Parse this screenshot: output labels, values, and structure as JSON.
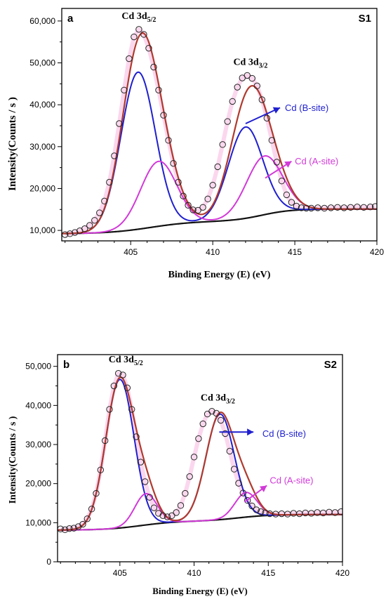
{
  "colors": {
    "data_points": "#222222",
    "fit_envelope": "#b03a2e",
    "b_site": "#1f1fd0",
    "a_site": "#d23ad8",
    "background": "#111111",
    "raw_band": "#f7b7e0"
  },
  "chart_data": [
    {
      "type": "scatter",
      "panel_letter": "a",
      "sample_label": "S1",
      "xlabel": "Binding Energy (E) (eV)",
      "ylabel": "Intensity(Counts / s )",
      "xlim": [
        400.8,
        420
      ],
      "ylim": [
        7500,
        63000
      ],
      "x_ticks": [
        405,
        410,
        415,
        420
      ],
      "y_ticks": [
        10000,
        20000,
        30000,
        40000,
        50000,
        60000
      ],
      "y_tick_labels": [
        "10,000",
        "20,000",
        "30,000",
        "40,000",
        "50,000",
        "60,000"
      ],
      "peak_labels": [
        {
          "base": "Cd 3d",
          "sub": "5/2",
          "x": 405.5,
          "y": 60500
        },
        {
          "base": "Cd 3d",
          "sub": "3/2",
          "x": 412.3,
          "y": 49500
        }
      ],
      "site_labels": [
        {
          "text": "Cd (B-site)",
          "color_key": "b_site",
          "x": 414.4,
          "y": 38500,
          "arrow_from": [
            412.0,
            35500
          ],
          "arrow_to": [
            414.1,
            39300
          ]
        },
        {
          "text": "Cd (A-site)",
          "color_key": "a_site",
          "x": 415.0,
          "y": 25800,
          "arrow_from": [
            413.2,
            22500
          ],
          "arrow_to": [
            414.8,
            26500
          ]
        }
      ],
      "background_params": {
        "start": 9200,
        "step1": 3000,
        "c1": 406.2,
        "w1": 1.3,
        "step2": 2900,
        "c2": 413.0,
        "w2": 0.9
      },
      "series": [
        {
          "name": "Cd (B-site)",
          "color_key": "b_site",
          "peaks": [
            {
              "center": 405.45,
              "height": 37500,
              "sigma": 1.05
            },
            {
              "center": 412.0,
              "height": 21800,
              "sigma": 1.05
            }
          ]
        },
        {
          "name": "Cd (A-site)",
          "color_key": "a_site",
          "peaks": [
            {
              "center": 406.7,
              "height": 15500,
              "sigma": 1.1
            },
            {
              "center": 413.15,
              "height": 14000,
              "sigma": 1.1
            }
          ]
        }
      ],
      "observed_points": [
        [
          401.0,
          9000
        ],
        [
          401.3,
          9200
        ],
        [
          401.6,
          9500
        ],
        [
          401.9,
          9900
        ],
        [
          402.2,
          10400
        ],
        [
          402.5,
          11200
        ],
        [
          402.8,
          12400
        ],
        [
          403.1,
          14200
        ],
        [
          403.4,
          17000
        ],
        [
          403.7,
          21500
        ],
        [
          404.0,
          27800
        ],
        [
          404.3,
          35500
        ],
        [
          404.6,
          43500
        ],
        [
          404.9,
          51000
        ],
        [
          405.2,
          56200
        ],
        [
          405.5,
          58000
        ],
        [
          405.8,
          56800
        ],
        [
          406.1,
          53500
        ],
        [
          406.4,
          49000
        ],
        [
          406.7,
          43500
        ],
        [
          407.0,
          37500
        ],
        [
          407.3,
          31500
        ],
        [
          407.6,
          26000
        ],
        [
          407.9,
          21500
        ],
        [
          408.2,
          18200
        ],
        [
          408.5,
          16000
        ],
        [
          408.8,
          14900
        ],
        [
          409.1,
          14800
        ],
        [
          409.4,
          15500
        ],
        [
          409.7,
          17500
        ],
        [
          410.0,
          20800
        ],
        [
          410.3,
          25200
        ],
        [
          410.6,
          30500
        ],
        [
          410.9,
          36000
        ],
        [
          411.2,
          40800
        ],
        [
          411.5,
          44200
        ],
        [
          411.8,
          46400
        ],
        [
          412.1,
          47000
        ],
        [
          412.4,
          46300
        ],
        [
          412.7,
          44500
        ],
        [
          413.0,
          41200
        ],
        [
          413.3,
          36800
        ],
        [
          413.6,
          31500
        ],
        [
          413.9,
          26300
        ],
        [
          414.2,
          21800
        ],
        [
          414.5,
          18500
        ],
        [
          414.8,
          16700
        ],
        [
          415.1,
          15800
        ],
        [
          415.4,
          15400
        ],
        [
          415.7,
          15300
        ],
        [
          416.0,
          15300
        ],
        [
          416.4,
          15400
        ],
        [
          416.8,
          15300
        ],
        [
          417.2,
          15400
        ],
        [
          417.6,
          15500
        ],
        [
          418.0,
          15400
        ],
        [
          418.4,
          15500
        ],
        [
          418.8,
          15600
        ],
        [
          419.2,
          15500
        ],
        [
          419.6,
          15600
        ],
        [
          419.9,
          15700
        ]
      ]
    },
    {
      "type": "scatter",
      "panel_letter": "b",
      "sample_label": "S2",
      "xlabel": "Binding Energy (E) (eV)",
      "ylabel": "Intensity(Counts / s )",
      "xlim": [
        400.8,
        420
      ],
      "ylim": [
        0,
        53000
      ],
      "x_ticks": [
        405,
        410,
        415,
        420
      ],
      "y_ticks": [
        0,
        10000,
        20000,
        30000,
        40000,
        50000
      ],
      "y_tick_labels": [
        "0",
        "10,000",
        "20,000",
        "30,000",
        "40,000",
        "50,000"
      ],
      "peak_labels": [
        {
          "base": "Cd 3d",
          "sub": "5/2",
          "x": 405.4,
          "y": 51000
        },
        {
          "base": "Cd 3d",
          "sub": "3/2",
          "x": 411.6,
          "y": 41200
        }
      ],
      "site_labels": [
        {
          "text": "Cd (B-site)",
          "color_key": "b_site",
          "x": 414.6,
          "y": 32000,
          "arrow_from": [
            411.7,
            33200
          ],
          "arrow_to": [
            414.0,
            33200
          ]
        },
        {
          "text": "Cd (A-site)",
          "color_key": "a_site",
          "x": 415.1,
          "y": 20000,
          "arrow_from": [
            413.4,
            15300
          ],
          "arrow_to": [
            414.9,
            19500
          ]
        }
      ],
      "background_params": {
        "start": 8100,
        "step1": 2300,
        "c1": 406.4,
        "w1": 1.2,
        "step2": 1700,
        "c2": 413.0,
        "w2": 1.1
      },
      "series": [
        {
          "name": "Cd (B-site)",
          "color_key": "b_site",
          "peaks": [
            {
              "center": 405.0,
              "height": 38000,
              "sigma": 0.95
            },
            {
              "center": 411.75,
              "height": 27000,
              "sigma": 0.95
            }
          ]
        },
        {
          "name": "Cd (A-site)",
          "color_key": "a_site",
          "peaks": [
            {
              "center": 406.75,
              "height": 8000,
              "sigma": 0.75
            },
            {
              "center": 413.5,
              "height": 6300,
              "sigma": 0.75
            }
          ]
        }
      ],
      "observed_points": [
        [
          401.0,
          8400
        ],
        [
          401.3,
          8200
        ],
        [
          401.6,
          8500
        ],
        [
          401.9,
          8600
        ],
        [
          402.2,
          9000
        ],
        [
          402.5,
          9600
        ],
        [
          402.8,
          11000
        ],
        [
          403.1,
          13500
        ],
        [
          403.4,
          17500
        ],
        [
          403.7,
          23500
        ],
        [
          404.0,
          31000
        ],
        [
          404.3,
          39000
        ],
        [
          404.6,
          45000
        ],
        [
          404.9,
          48200
        ],
        [
          405.2,
          47800
        ],
        [
          405.5,
          44500
        ],
        [
          405.8,
          39000
        ],
        [
          406.1,
          32000
        ],
        [
          406.4,
          25500
        ],
        [
          406.7,
          20500
        ],
        [
          407.0,
          16500
        ],
        [
          407.3,
          13800
        ],
        [
          407.6,
          12400
        ],
        [
          407.9,
          11800
        ],
        [
          408.2,
          11500
        ],
        [
          408.5,
          11800
        ],
        [
          408.8,
          12600
        ],
        [
          409.1,
          14400
        ],
        [
          409.4,
          17500
        ],
        [
          409.7,
          21800
        ],
        [
          410.0,
          26800
        ],
        [
          410.3,
          31500
        ],
        [
          410.6,
          35300
        ],
        [
          410.9,
          37800
        ],
        [
          411.2,
          38500
        ],
        [
          411.5,
          38000
        ],
        [
          411.8,
          36200
        ],
        [
          412.1,
          32800
        ],
        [
          412.4,
          28300
        ],
        [
          412.7,
          23700
        ],
        [
          413.0,
          20100
        ],
        [
          413.3,
          17600
        ],
        [
          413.6,
          15700
        ],
        [
          413.9,
          14300
        ],
        [
          414.2,
          13300
        ],
        [
          414.5,
          12800
        ],
        [
          414.8,
          12500
        ],
        [
          415.1,
          12300
        ],
        [
          415.5,
          12200
        ],
        [
          415.9,
          12300
        ],
        [
          416.3,
          12200
        ],
        [
          416.7,
          12400
        ],
        [
          417.1,
          12300
        ],
        [
          417.5,
          12500
        ],
        [
          417.9,
          12400
        ],
        [
          418.3,
          12600
        ],
        [
          418.7,
          12500
        ],
        [
          419.1,
          12700
        ],
        [
          419.5,
          12600
        ],
        [
          419.9,
          12800
        ]
      ]
    }
  ]
}
